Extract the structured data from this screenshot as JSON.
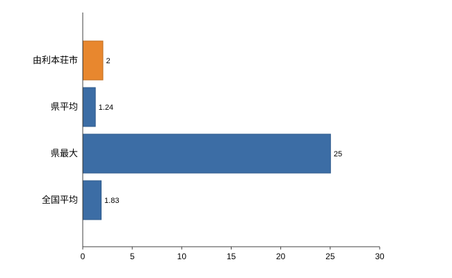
{
  "chart_data": {
    "type": "bar",
    "orientation": "horizontal",
    "title": "",
    "xlabel": "",
    "ylabel": "",
    "categories": [
      "由利本荘市",
      "県平均",
      "県最大",
      "全国平均"
    ],
    "values": [
      2,
      1.24,
      25,
      1.83
    ],
    "value_labels": [
      "2",
      "1.24",
      "25",
      "1.83"
    ],
    "bar_colors": [
      "#E8872E",
      "#3C6DA5",
      "#3C6DA5",
      "#3C6DA5"
    ],
    "bar_border_colors": [
      "#C06E1F",
      "#2F5B8C",
      "#2F5B8C",
      "#2F5B8C"
    ],
    "xlim": [
      0,
      30
    ],
    "xticks": [
      0,
      5,
      10,
      15,
      20,
      25,
      30
    ],
    "xtick_labels": [
      "0",
      "5",
      "10",
      "15",
      "20",
      "25",
      "30"
    ],
    "grid": false,
    "legend": false,
    "axis_color": "#404040",
    "label_color": "#000000",
    "background": "#ffffff"
  }
}
